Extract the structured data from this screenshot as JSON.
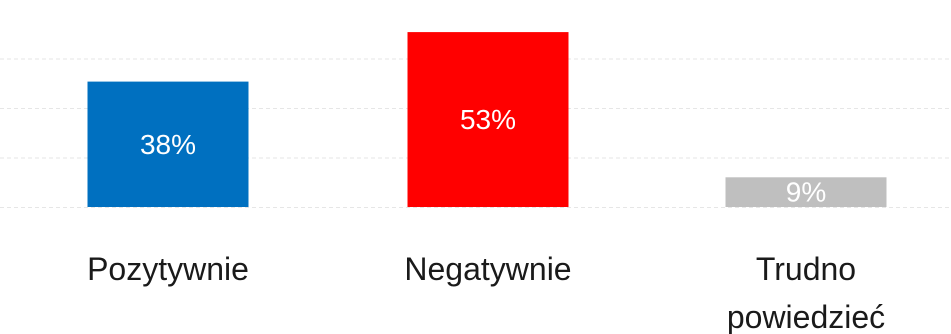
{
  "chart_data": {
    "type": "bar",
    "categories": [
      "Pozytywnie",
      "Negatywnie",
      "Trudno powiedzieć"
    ],
    "category_lines": [
      [
        "Pozytywnie"
      ],
      [
        "Negatywnie"
      ],
      [
        "Trudno",
        "powiedzieć"
      ]
    ],
    "values": [
      38,
      53,
      9
    ],
    "data_labels": [
      "38%",
      "53%",
      "9%"
    ],
    "colors": [
      "#0070c0",
      "#ff0000",
      "#bfbfbf"
    ],
    "ylim": [
      0,
      60
    ],
    "gridlines": [
      15,
      30,
      45
    ],
    "grid": true,
    "title": "",
    "xlabel": "",
    "ylabel": "",
    "legend": "none"
  }
}
